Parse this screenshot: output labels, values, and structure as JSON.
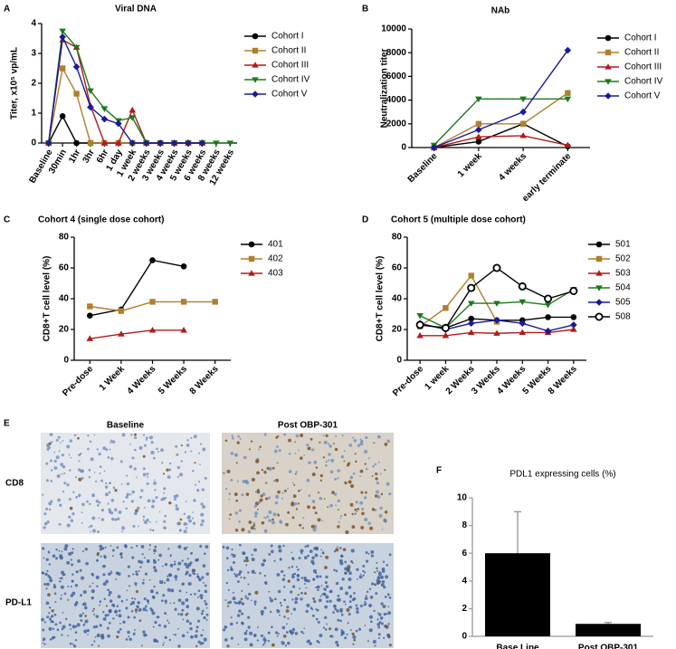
{
  "panel_labels": [
    "A",
    "B",
    "C",
    "D",
    "E",
    "F"
  ],
  "figure_e": {
    "columns": [
      "Baseline",
      "Post OBP-301"
    ],
    "rows": [
      "CD8",
      "PD-L1"
    ]
  },
  "chart_data": [
    {
      "type": "line",
      "title": "Viral DNA",
      "y_label": "Titer, x10⁵ vp/mL",
      "categories": [
        "Baseline",
        "30min",
        "1hr",
        "3hr",
        "6hr",
        "1 day",
        "1 week",
        "2 weeks",
        "3 weeks",
        "4 weeks",
        "5 weeks",
        "6 weeks",
        "8 weeks",
        "12 weeks"
      ],
      "ylim": [
        0,
        4
      ],
      "yticks": [
        0,
        1,
        2,
        3,
        4
      ],
      "series": [
        {
          "name": "Cohort I",
          "color": "#000000",
          "marker": "circle",
          "values": [
            0,
            0.9,
            0,
            0,
            0,
            0,
            0,
            0,
            0,
            0,
            0,
            0,
            null,
            null
          ]
        },
        {
          "name": "Cohort II",
          "color": "#b07f2c",
          "marker": "square",
          "values": [
            0,
            2.5,
            1.65,
            0,
            0,
            0,
            0,
            0,
            0,
            0,
            0,
            0,
            null,
            null
          ]
        },
        {
          "name": "Cohort III",
          "color": "#b01c1c",
          "marker": "triangle-up",
          "values": [
            0,
            3.45,
            3.2,
            1.25,
            0,
            0,
            1.1,
            0,
            0,
            0,
            0,
            0,
            null,
            null
          ]
        },
        {
          "name": "Cohort IV",
          "color": "#1a7a1a",
          "marker": "triangle-down",
          "values": [
            0,
            3.75,
            3.2,
            1.75,
            1.15,
            0.75,
            0.85,
            0,
            0,
            0,
            0,
            0,
            0,
            0
          ]
        },
        {
          "name": "Cohort V",
          "color": "#1a1a9a",
          "marker": "diamond",
          "values": [
            0,
            3.55,
            2.55,
            1.2,
            0.8,
            0.65,
            0,
            0,
            0,
            0,
            0,
            0,
            null,
            null
          ]
        }
      ]
    },
    {
      "type": "line",
      "title": "NAb",
      "y_label": "Neutralization titer",
      "categories": [
        "Baseline",
        "1 week",
        "4 weeks",
        "early terminate"
      ],
      "ylim": [
        0,
        10000
      ],
      "yticks": [
        0,
        2000,
        4000,
        6000,
        8000,
        10000
      ],
      "series": [
        {
          "name": "Cohort I",
          "color": "#000000",
          "marker": "circle",
          "values": [
            0,
            500,
            2000,
            100
          ]
        },
        {
          "name": "Cohort II",
          "color": "#b07f2c",
          "marker": "square",
          "values": [
            0,
            2000,
            2000,
            4600
          ]
        },
        {
          "name": "Cohort III",
          "color": "#b01c1c",
          "marker": "triangle-up",
          "values": [
            0,
            900,
            1000,
            200
          ]
        },
        {
          "name": "Cohort IV",
          "color": "#1a7a1a",
          "marker": "triangle-down",
          "values": [
            200,
            4100,
            4100,
            4100
          ]
        },
        {
          "name": "Cohort V",
          "color": "#1a1a9a",
          "marker": "diamond",
          "values": [
            0,
            1500,
            3000,
            8200
          ]
        }
      ]
    },
    {
      "type": "line",
      "title": "Cohort 4  (single dose cohort)",
      "y_label": "CD8+T cell level (%)",
      "categories": [
        "Pre-dose",
        "1 Week",
        "4 Weeks",
        "5 Weeks",
        "8 Weeks"
      ],
      "ylim": [
        0,
        80
      ],
      "yticks": [
        0,
        20,
        40,
        60,
        80
      ],
      "series": [
        {
          "name": "401",
          "color": "#000000",
          "marker": "circle",
          "values": [
            29,
            33,
            65,
            61,
            null
          ]
        },
        {
          "name": "402",
          "color": "#b07f2c",
          "marker": "square",
          "values": [
            35,
            32,
            38,
            38,
            38
          ]
        },
        {
          "name": "403",
          "color": "#b01c1c",
          "marker": "triangle-up",
          "values": [
            14,
            17,
            19.5,
            19.5,
            null
          ]
        }
      ]
    },
    {
      "type": "line",
      "title": "Cohort 5  (multiple dose cohort)",
      "y_label": "CD8+T cell level (%)",
      "categories": [
        "Pre-dose",
        "1 week",
        "2 Weeks",
        "3 Weeks",
        "4 Weeks",
        "5 Weeks",
        "8 Weeks"
      ],
      "ylim": [
        0,
        80
      ],
      "yticks": [
        0,
        20,
        40,
        60,
        80
      ],
      "series": [
        {
          "name": "501",
          "color": "#000000",
          "marker": "circle",
          "values": [
            23,
            21,
            27,
            26,
            26,
            28,
            28
          ]
        },
        {
          "name": "502",
          "color": "#b07f2c",
          "marker": "square",
          "values": [
            22,
            34,
            55,
            25,
            null,
            null,
            null
          ]
        },
        {
          "name": "503",
          "color": "#b01c1c",
          "marker": "triangle-up",
          "values": [
            16,
            16,
            18,
            17.5,
            18,
            18,
            20
          ]
        },
        {
          "name": "504",
          "color": "#1a7a1a",
          "marker": "triangle-down",
          "values": [
            29,
            21,
            37,
            37,
            38,
            36,
            46
          ]
        },
        {
          "name": "505",
          "color": "#1a1a9a",
          "marker": "diamond",
          "values": [
            24,
            20,
            24,
            26,
            24,
            19,
            23
          ]
        },
        {
          "name": "508",
          "color": "#000000",
          "marker": "open-circle",
          "values": [
            23,
            21,
            47,
            60,
            48,
            40,
            45
          ]
        }
      ]
    },
    {
      "type": "bar",
      "title": "PDL1 expressing cells (%)",
      "categories": [
        "Base Line",
        "Post OBP-301"
      ],
      "values": [
        6,
        0.9
      ],
      "errors": [
        3,
        0.1
      ],
      "color": "#000000",
      "ylim": [
        0,
        10
      ],
      "yticks": [
        0,
        2,
        4,
        6,
        8,
        10
      ]
    }
  ]
}
